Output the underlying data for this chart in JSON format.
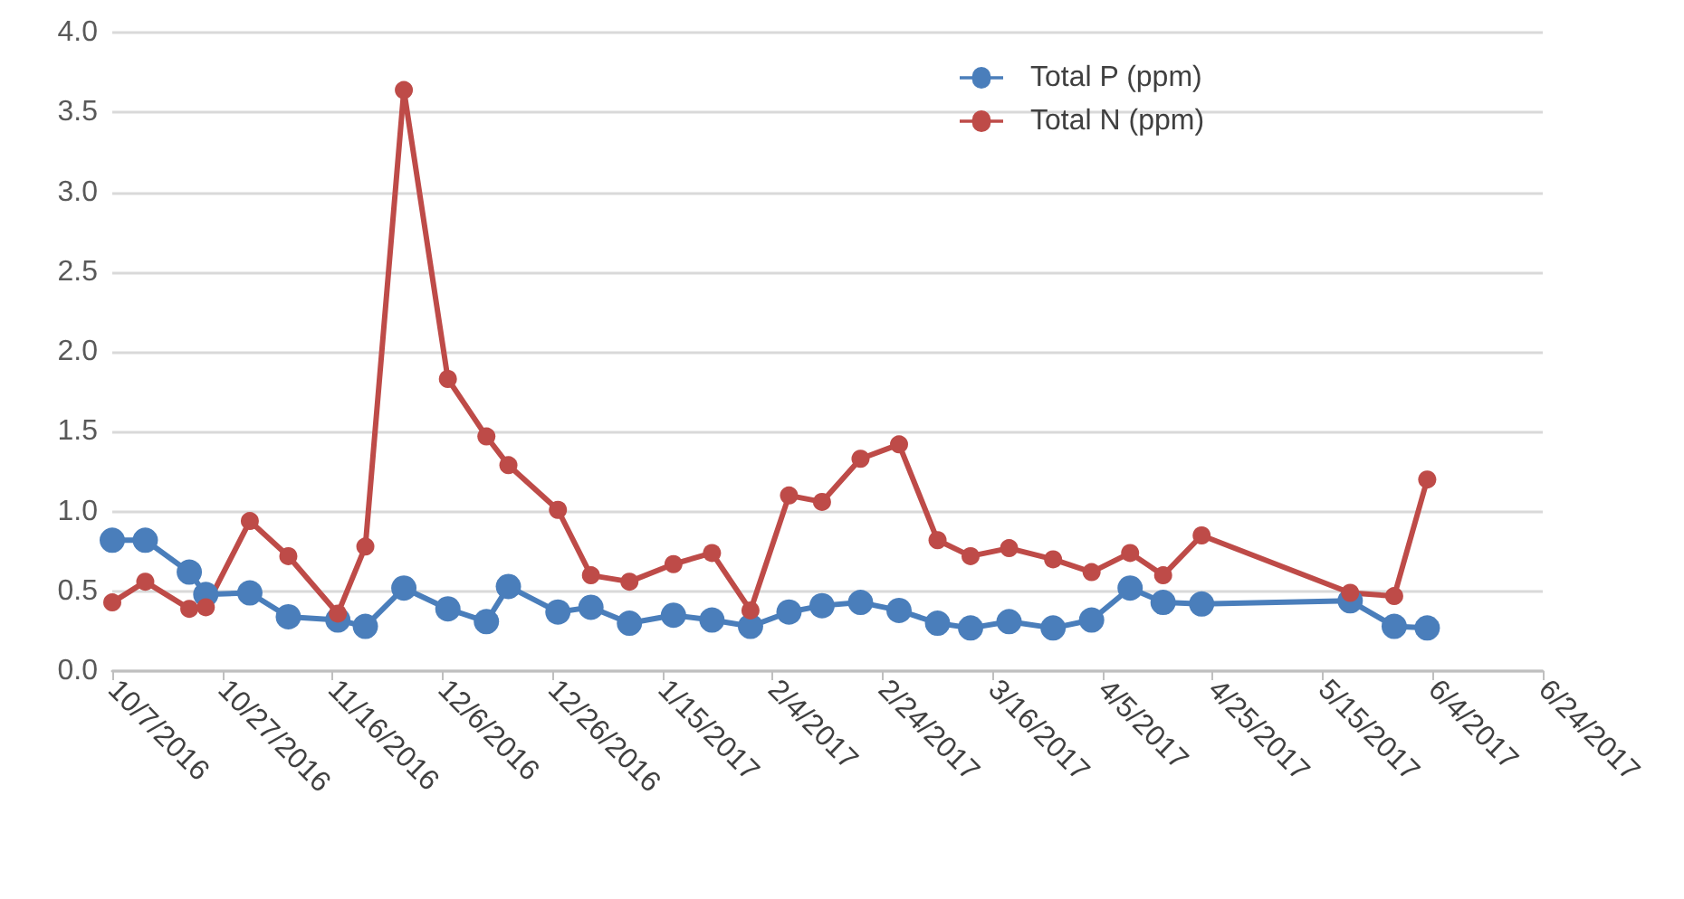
{
  "chart_data": {
    "type": "line",
    "x": [
      "2016-10-07",
      "2016-10-13",
      "2016-10-21",
      "2016-10-24",
      "2016-11-01",
      "2016-11-08",
      "2016-11-17",
      "2016-11-22",
      "2016-11-29",
      "2016-12-07",
      "2016-12-14",
      "2016-12-18",
      "2016-12-27",
      "2017-01-02",
      "2017-01-09",
      "2017-01-17",
      "2017-01-24",
      "2017-01-31",
      "2017-02-07",
      "2017-02-13",
      "2017-02-20",
      "2017-02-27",
      "2017-03-06",
      "2017-03-12",
      "2017-03-19",
      "2017-03-27",
      "2017-04-03",
      "2017-04-10",
      "2017-04-16",
      "2017-04-23",
      "2017-05-20",
      "2017-05-28",
      "2017-06-03"
    ],
    "series": [
      {
        "name": "Total P (ppm)",
        "color": "#4a7ebb",
        "values": [
          0.82,
          0.82,
          0.62,
          0.48,
          0.49,
          0.34,
          0.32,
          0.28,
          0.52,
          0.39,
          0.31,
          0.53,
          0.37,
          0.4,
          0.3,
          0.35,
          0.32,
          0.28,
          0.37,
          0.41,
          0.43,
          0.38,
          0.3,
          0.27,
          0.31,
          0.27,
          0.32,
          0.52,
          0.43,
          0.42,
          0.44,
          0.28,
          0.27
        ]
      },
      {
        "name": "Total N (ppm)",
        "color": "#be4b48",
        "values": [
          0.43,
          0.56,
          0.39,
          0.4,
          0.94,
          0.72,
          0.36,
          0.78,
          3.64,
          1.83,
          1.47,
          1.29,
          1.01,
          0.6,
          0.56,
          0.67,
          0.74,
          0.38,
          1.1,
          1.06,
          1.33,
          1.42,
          0.82,
          0.72,
          0.77,
          0.7,
          0.62,
          0.74,
          0.6,
          0.85,
          0.49,
          0.47,
          1.2
        ]
      }
    ],
    "xlim": [
      "2016-10-07",
      "2017-06-24"
    ],
    "xticks": [
      {
        "value": "2016-10-07",
        "label": "10/7/2016"
      },
      {
        "value": "2016-10-27",
        "label": "10/27/2016"
      },
      {
        "value": "2016-11-16",
        "label": "11/16/2016"
      },
      {
        "value": "2016-12-06",
        "label": "12/6/2016"
      },
      {
        "value": "2016-12-26",
        "label": "12/26/2016"
      },
      {
        "value": "2017-01-15",
        "label": "1/15/2017"
      },
      {
        "value": "2017-02-04",
        "label": "2/4/2017"
      },
      {
        "value": "2017-02-24",
        "label": "2/24/2017"
      },
      {
        "value": "2017-03-16",
        "label": "3/16/2017"
      },
      {
        "value": "2017-04-05",
        "label": "4/5/2017"
      },
      {
        "value": "2017-04-25",
        "label": "4/25/2017"
      },
      {
        "value": "2017-05-15",
        "label": "5/15/2017"
      },
      {
        "value": "2017-06-04",
        "label": "6/4/2017"
      },
      {
        "value": "2017-06-24",
        "label": "6/24/2017"
      }
    ],
    "ylim": [
      0,
      4
    ],
    "yticks": [
      {
        "value": 0,
        "label": "0.0"
      },
      {
        "value": 0.5,
        "label": "0.5"
      },
      {
        "value": 1,
        "label": "1.0"
      },
      {
        "value": 1.5,
        "label": "1.5"
      },
      {
        "value": 2,
        "label": "2.0"
      },
      {
        "value": 2.5,
        "label": "2.5"
      },
      {
        "value": 3,
        "label": "3.0"
      },
      {
        "value": 3.5,
        "label": "3.5"
      },
      {
        "value": 4,
        "label": "4.0"
      }
    ],
    "grid": "y",
    "legend": "top right",
    "marker": "circle",
    "line_style": "solid"
  }
}
